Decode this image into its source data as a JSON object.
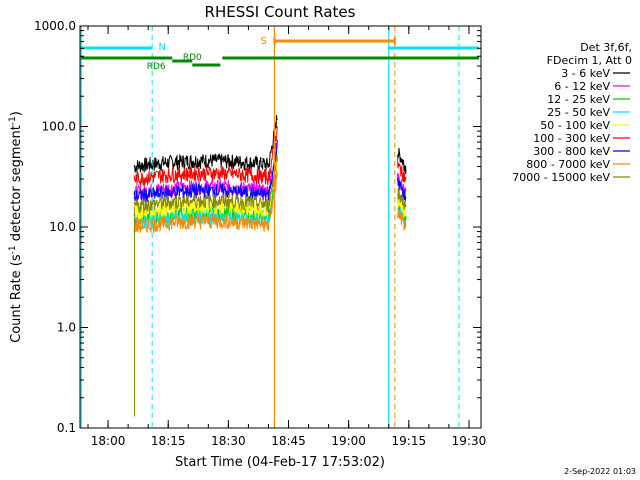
{
  "chart_data": {
    "type": "line",
    "title": "RHESSI Count Rates",
    "xlabel": "Start Time (04-Feb-17 17:53:02)",
    "ylabel_main": "Count Rate (s",
    "ylabel_sup1": "-1",
    "ylabel_mid": " detector segment",
    "ylabel_sup2": "-1",
    "ylabel_end": ")",
    "y_scale": "log",
    "ylim": [
      0.1,
      1000
    ],
    "xlim_minutes": [
      "17:53:02",
      "19:33:00"
    ],
    "x_ticks": [
      "18:00",
      "18:15",
      "18:30",
      "18:45",
      "19:00",
      "19:15",
      "19:30"
    ],
    "y_ticks": [
      "0.1",
      "1.0",
      "10.0",
      "100.0",
      "1000.0"
    ],
    "legend_header": [
      "Det 3f,6f,",
      "FDecim 1, Att 0"
    ],
    "legend_placement": "right",
    "footer_date": "2-Sep-2022 01:03",
    "flags": {
      "night_label": "N",
      "saa_label": "S",
      "rd0_label": "RD0",
      "rd6_label": "RD6"
    },
    "series": [
      {
        "name": "3 - 6 keV",
        "color": "#000000",
        "level": 40
      },
      {
        "name": "6 - 12 keV",
        "color": "#ff00ff",
        "level": 22
      },
      {
        "name": "12 - 25 keV",
        "color": "#00cc00",
        "level": 12
      },
      {
        "name": "25 - 50 keV",
        "color": "#00e5e5",
        "level": 11
      },
      {
        "name": "50 - 100 keV",
        "color": "#ffff00",
        "level": 14
      },
      {
        "name": "100 - 300 keV",
        "color": "#ff0000",
        "level": 30
      },
      {
        "name": "300 - 800 keV",
        "color": "#0000ff",
        "level": 20
      },
      {
        "name": "800 - 7000 keV",
        "color": "#ff8800",
        "level": 10
      },
      {
        "name": "7000 - 15000 keV",
        "color": "#888800",
        "level": 16
      }
    ]
  }
}
